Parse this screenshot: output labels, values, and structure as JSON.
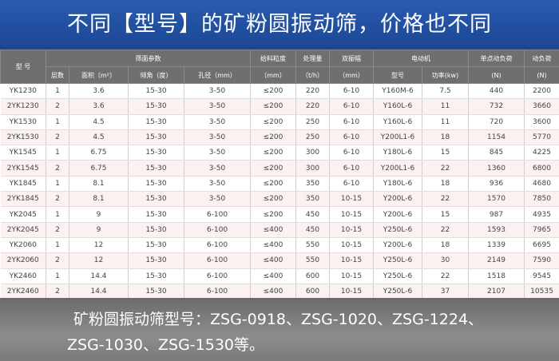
{
  "title": "不同【型号】的矿粉圆振动筛，价格也不同",
  "header": {
    "model": "型 号",
    "screen_params": "筛面参数",
    "layers": "层数",
    "area": "面积（m²）",
    "angle": "倾角（度）",
    "aperture": "孔径（mm）",
    "feed_size": "给料粒度",
    "feed_size_unit": "（mm）",
    "capacity": "处理量",
    "capacity_unit": "（t/h）",
    "amplitude": "双振幅",
    "amplitude_unit": "（mm）",
    "motor": "电动机",
    "motor_model": "型号",
    "power": "功率(kw)",
    "point_load": "单点动负荷",
    "point_load_unit": "(N)",
    "dyn_load": "动负荷",
    "dyn_load_unit": "(N)"
  },
  "rows": [
    [
      "YK1230",
      "1",
      "3.6",
      "15-30",
      "3-50",
      "≤200",
      "220",
      "6-10",
      "Y160M-6",
      "7.5",
      "440",
      "2200"
    ],
    [
      "2YK1230",
      "2",
      "3.6",
      "15-30",
      "3-50",
      "≤200",
      "220",
      "6-10",
      "Y160L-6",
      "11",
      "732",
      "3660"
    ],
    [
      "YK1530",
      "1",
      "4.5",
      "15-30",
      "3-50",
      "≤200",
      "250",
      "6-10",
      "Y160L-6",
      "11",
      "720",
      "3600"
    ],
    [
      "2YK1530",
      "2",
      "4.5",
      "15-30",
      "3-50",
      "≤200",
      "250",
      "6-10",
      "Y200L1-6",
      "18",
      "1154",
      "5770"
    ],
    [
      "YK1545",
      "1",
      "6.75",
      "15-30",
      "3-50",
      "≤200",
      "300",
      "6-10",
      "Y180L-6",
      "15",
      "845",
      "4225"
    ],
    [
      "2YK1545",
      "2",
      "6.75",
      "15-30",
      "3-50",
      "≤200",
      "300",
      "6-10",
      "Y200L1-6",
      "22",
      "1360",
      "6800"
    ],
    [
      "YK1845",
      "1",
      "8.1",
      "15-30",
      "3-50",
      "≤200",
      "350",
      "6-10",
      "Y180L-6",
      "18",
      "936",
      "4680"
    ],
    [
      "2YK1845",
      "2",
      "8.1",
      "15-30",
      "3-50",
      "≤200",
      "350",
      "10-15",
      "Y200L-6",
      "22",
      "1570",
      "7850"
    ],
    [
      "YK2045",
      "1",
      "9",
      "15-30",
      "6-100",
      "≤200",
      "450",
      "10-15",
      "Y200L-6",
      "15",
      "987",
      "4935"
    ],
    [
      "2YK2045",
      "2",
      "9",
      "15-30",
      "6-100",
      "≤400",
      "450",
      "10-15",
      "Y250L-6",
      "22",
      "1593",
      "7965"
    ],
    [
      "YK2060",
      "1",
      "12",
      "15-30",
      "6-100",
      "≤400",
      "550",
      "10-15",
      "Y200L-6",
      "18",
      "1339",
      "6695"
    ],
    [
      "2YK2060",
      "2",
      "12",
      "15-30",
      "6-100",
      "≤400",
      "550",
      "10-15",
      "Y250L-6",
      "30",
      "2149",
      "7590"
    ],
    [
      "YK2460",
      "1",
      "14.4",
      "15-30",
      "6-100",
      "≤400",
      "600",
      "10-15",
      "Y250L-6",
      "22",
      "1518",
      "9545"
    ],
    [
      "2YK2460",
      "2",
      "14.4",
      "15-30",
      "6-100",
      "≤400",
      "600",
      "10-15",
      "Y250L-6",
      "37",
      "2107",
      "10535"
    ]
  ],
  "footer": {
    "line1": "矿粉圆振动筛型号：ZSG-0918、ZSG-1020、ZSG-1224、",
    "line2": "ZSG-1030、ZSG-1530等。"
  }
}
